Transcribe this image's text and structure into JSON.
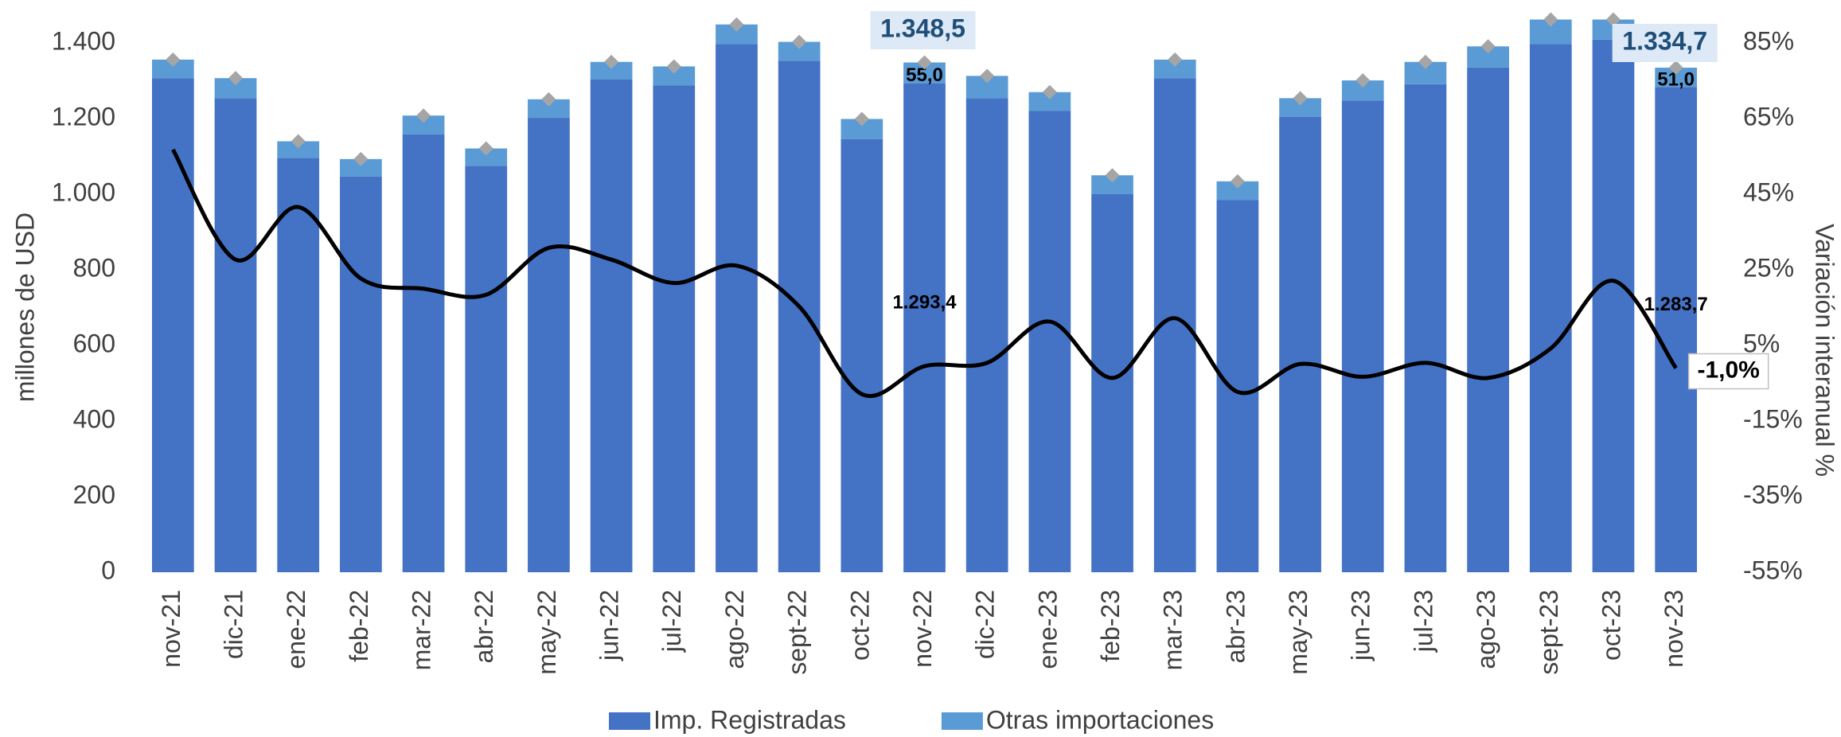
{
  "chart_data": {
    "type": "bar",
    "categories": [
      "nov-21",
      "dic-21",
      "ene-22",
      "feb-22",
      "mar-22",
      "abr-22",
      "may-22",
      "jun-22",
      "jul-22",
      "ago-22",
      "sept-22",
      "oct-22",
      "nov-22",
      "dic-22",
      "ene-23",
      "feb-23",
      "mar-23",
      "abr-23",
      "may-23",
      "jun-23",
      "jul-23",
      "ago-23",
      "sept-23",
      "oct-23",
      "nov-23"
    ],
    "series": [
      {
        "name": "Imp. Registradas",
        "color": "#4472c4",
        "stacked": true,
        "values": [
          1307,
          1254,
          1096,
          1047,
          1158,
          1075,
          1202,
          1304,
          1288,
          1397,
          1353,
          1146,
          1293.4,
          1254,
          1220,
          1000,
          1307,
          985,
          1205,
          1248,
          1291,
          1335,
          1397,
          1409,
          1283.7
        ],
        "value_labels": [
          null,
          null,
          null,
          null,
          null,
          null,
          null,
          null,
          null,
          null,
          null,
          null,
          "1.293,4",
          null,
          null,
          null,
          null,
          null,
          null,
          null,
          null,
          null,
          null,
          null,
          "1.283,7"
        ]
      },
      {
        "name": "Otras importaciones",
        "color": "#5b9bd5",
        "stacked": true,
        "values": [
          49,
          53,
          44,
          46,
          50,
          46,
          49,
          46,
          50,
          52,
          50,
          53,
          55.0,
          59,
          50,
          50,
          49,
          49,
          49,
          53,
          59,
          56,
          65,
          53,
          51.0
        ],
        "value_labels": [
          null,
          null,
          null,
          null,
          null,
          null,
          null,
          null,
          null,
          null,
          null,
          null,
          "55,0",
          null,
          null,
          null,
          null,
          null,
          null,
          null,
          null,
          null,
          null,
          null,
          "51,0"
        ]
      },
      {
        "type": "line",
        "axis": "y2",
        "color": "#000000",
        "values": [
          56.8,
          27.7,
          41.6,
          22.7,
          20,
          18.4,
          30.8,
          27.7,
          21.5,
          26.1,
          15.3,
          -7.9,
          -0.5,
          0.4,
          11.3,
          -3.6,
          12.2,
          -7.3,
          0.1,
          -3.3,
          0.4,
          -3.6,
          4.2,
          22.1,
          -1.0
        ],
        "value_labels": [
          null,
          null,
          null,
          null,
          null,
          null,
          null,
          null,
          null,
          null,
          null,
          null,
          null,
          null,
          null,
          null,
          null,
          null,
          null,
          null,
          null,
          null,
          null,
          null,
          "-1,0%"
        ]
      }
    ],
    "total_marker_color": "#a5a5a5",
    "annotations": [
      {
        "text": "1.348,5",
        "value": 1348.5
      },
      {
        "text": "1.334,7",
        "value": 1334.7
      }
    ],
    "y_label": "millones de  USD",
    "y2_label": "Variación  interanual %",
    "ylim": [
      0,
      1400
    ],
    "yticks": [
      0,
      200,
      400,
      600,
      800,
      {
        "value": 1000,
        "label": "1.000"
      },
      {
        "value": 1200,
        "label": "1.200"
      },
      {
        "value": 1400,
        "label": "1.400"
      }
    ],
    "y2lim": [
      -55,
      85
    ],
    "y2ticks": [
      {
        "value": -55,
        "label": "-55%"
      },
      {
        "value": -35,
        "label": "-35%"
      },
      {
        "value": -15,
        "label": "-15%"
      },
      {
        "value": 5,
        "label": "5%"
      },
      {
        "value": 25,
        "label": "25%"
      },
      {
        "value": 45,
        "label": "45%"
      },
      {
        "value": 65,
        "label": "65%"
      },
      {
        "value": 85,
        "label": "85%"
      }
    ],
    "grid": false,
    "legend": "bottom"
  }
}
